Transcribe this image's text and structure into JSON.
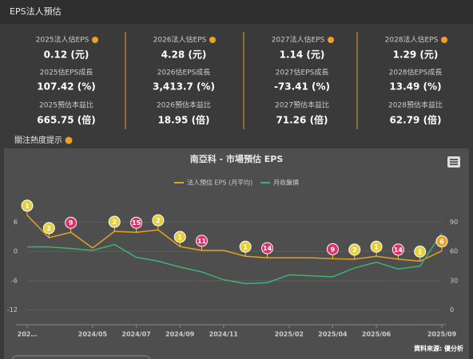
{
  "header": {
    "title": "EPS法人預估"
  },
  "cards": [
    {
      "eps_label": "2025法人估EPS",
      "eps": "0.12 (元)",
      "growth_label": "2025估EPS成長",
      "growth": "107.42 (%)",
      "pe_label": "2025預估本益比",
      "pe": "665.75 (倍)"
    },
    {
      "eps_label": "2026法人估EPS",
      "eps": "4.28 (元)",
      "growth_label": "2026估EPS成長",
      "growth": "3,413.7 (%)",
      "pe_label": "2026預估本益比",
      "pe": "18.95 (倍)"
    },
    {
      "eps_label": "2027法人估EPS",
      "eps": "1.14 (元)",
      "growth_label": "2027估EPS成長",
      "growth": "-73.41 (%)",
      "pe_label": "2027預估本益比",
      "pe": "71.26 (倍)"
    },
    {
      "eps_label": "2028法人估EPS",
      "eps": "1.29 (元)",
      "growth_label": "2028估EPS成長",
      "growth": "13.49 (%)",
      "pe_label": "2028預估本益比",
      "pe": "62.79 (倍)"
    }
  ],
  "attention_label": "關注熱度提示",
  "chart_data": {
    "type": "line",
    "title": "南亞科 - 市場預估 EPS",
    "source": "資料來源: 優分析",
    "categories": [
      "202…",
      null,
      null,
      "2024/05",
      null,
      "2024/07",
      null,
      "2024/09",
      null,
      "2024/11",
      null,
      null,
      "2025/02",
      null,
      "2025/04",
      null,
      "2025/06",
      null,
      null,
      "2025/09"
    ],
    "series": [
      {
        "name": "法人預估 EPS (月平均)",
        "color": "#e8a020",
        "values": [
          7.4,
          2.8,
          3.9,
          0.7,
          4.1,
          3.9,
          4.4,
          1.0,
          0.2,
          0.2,
          -1.0,
          -1.3,
          -1.3,
          -1.3,
          -1.5,
          -1.6,
          -1.0,
          -1.6,
          -2.0,
          0.1
        ]
      },
      {
        "name": "月收盤價",
        "color": "#3cb371",
        "axis": "y2",
        "values": [
          64.6,
          64.6,
          63,
          61,
          67,
          54,
          50,
          44,
          39,
          31,
          27,
          28,
          36,
          35,
          34,
          43,
          49,
          42,
          45,
          79
        ]
      }
    ],
    "attention": {
      "values": [
        1,
        2,
        9,
        null,
        2,
        15,
        2,
        1,
        11,
        null,
        1,
        14,
        null,
        null,
        9,
        2,
        1,
        14,
        1,
        6
      ],
      "colors": [
        "#e6cf3c",
        "#e6cf3c",
        "#e0306a",
        null,
        "#e6cf3c",
        "#e0306a",
        "#e6cf3c",
        "#e6cf3c",
        "#e0306a",
        null,
        "#e6cf3c",
        "#e0306a",
        null,
        null,
        "#e0306a",
        "#e6cf3c",
        "#e6cf3c",
        "#e0306a",
        "#e6cf3c",
        "#f0a020"
      ]
    },
    "ylim": [
      -15,
      9
    ],
    "yticks": [
      6,
      0,
      -6,
      -12
    ],
    "y2lim": [
      -15,
      105
    ],
    "y2ticks": [
      90,
      60,
      30,
      0
    ]
  }
}
